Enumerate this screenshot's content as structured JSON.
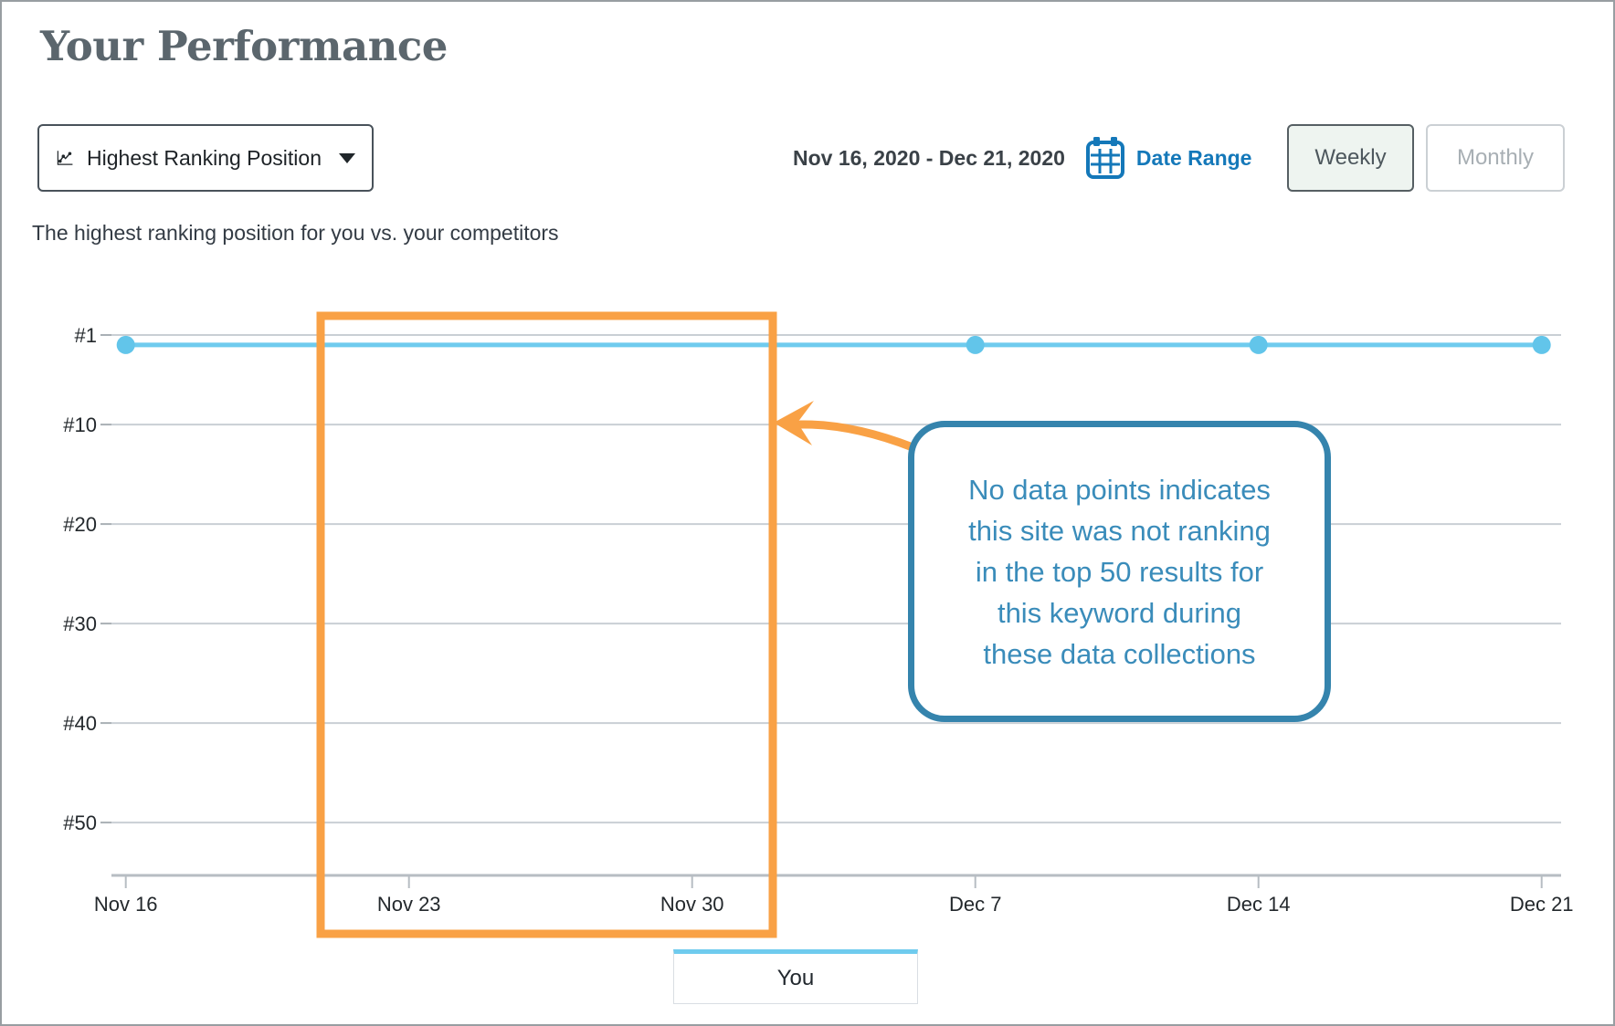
{
  "header": {
    "title": "Your Performance",
    "subtitle": "The highest ranking position for you vs. your competitors"
  },
  "controls": {
    "metric_dropdown": {
      "label": "Highest Ranking Position",
      "icon": "line-chart-icon"
    },
    "date_range_text": "Nov 16, 2020 - Dec 21, 2020",
    "date_range_link": "Date Range",
    "date_range_icon": "calendar-icon",
    "weekly_label": "Weekly",
    "monthly_label": "Monthly",
    "selected_granularity": "Weekly"
  },
  "chart_data": {
    "type": "line",
    "title": "Highest Ranking Position",
    "x": [
      "Nov 16",
      "Nov 23",
      "Nov 30",
      "Dec 7",
      "Dec 14",
      "Dec 21"
    ],
    "y_ticks": [
      1,
      10,
      20,
      30,
      40,
      50
    ],
    "y_tick_labels": [
      "#1",
      "#10",
      "#20",
      "#30",
      "#40",
      "#50"
    ],
    "y_axis": "ranking position, inverted (#1 at top)",
    "ylim": [
      1,
      55
    ],
    "grid": true,
    "legend_position": "bottom-center",
    "series": [
      {
        "name": "You",
        "color": "#6fcbee",
        "dot_color": "#62c5ea",
        "values": [
          2,
          null,
          null,
          2,
          2,
          2
        ],
        "note": "line drawn continuously at about position 2 across all dates; dots only at collected data points (Nov 16, Dec 7, Dec 14, Dec 21)"
      }
    ]
  },
  "annotations": {
    "highlight_box": {
      "color": "#f9a145",
      "x_from": "Nov 23",
      "x_to": "Nov 30"
    },
    "callout": {
      "text": "No data points indicates\nthis site was not ranking\nin the top 50 results for\nthis keyword during\nthese data collections",
      "border_color": "#3584ad",
      "text_color": "#3a8cba"
    }
  },
  "legend": {
    "items": [
      {
        "label": "You",
        "color": "#6fcbee"
      }
    ]
  },
  "colors": {
    "title": "#5b666d",
    "link_blue": "#1478b9",
    "grid": "#c9cfd4",
    "axis": "#b7bdc3"
  }
}
